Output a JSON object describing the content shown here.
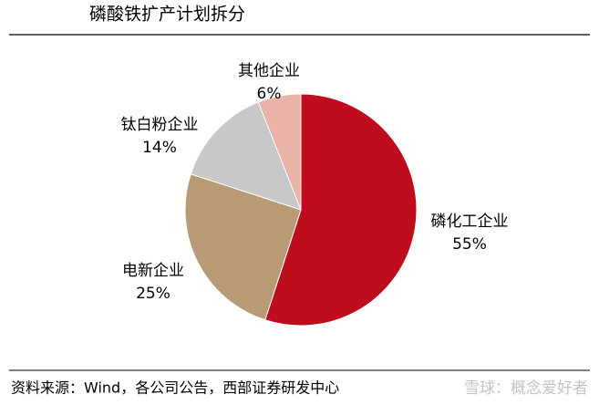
{
  "chart_data": {
    "type": "pie",
    "title": "磷酸铁扩产计划拆分",
    "categories": [
      "磷化工企业",
      "电新企业",
      "钛白粉企业",
      "其他企业"
    ],
    "values": [
      55,
      25,
      14,
      6
    ],
    "value_labels": [
      "55%",
      "25%",
      "14%",
      "6%"
    ],
    "colors": [
      "#c00d1e",
      "#b89a74",
      "#c8c8c8",
      "#e9b3a8"
    ],
    "source": "资料来源：Wind，各公司公告，西部证券研发中心",
    "watermark": "雪球：概念爱好者"
  }
}
